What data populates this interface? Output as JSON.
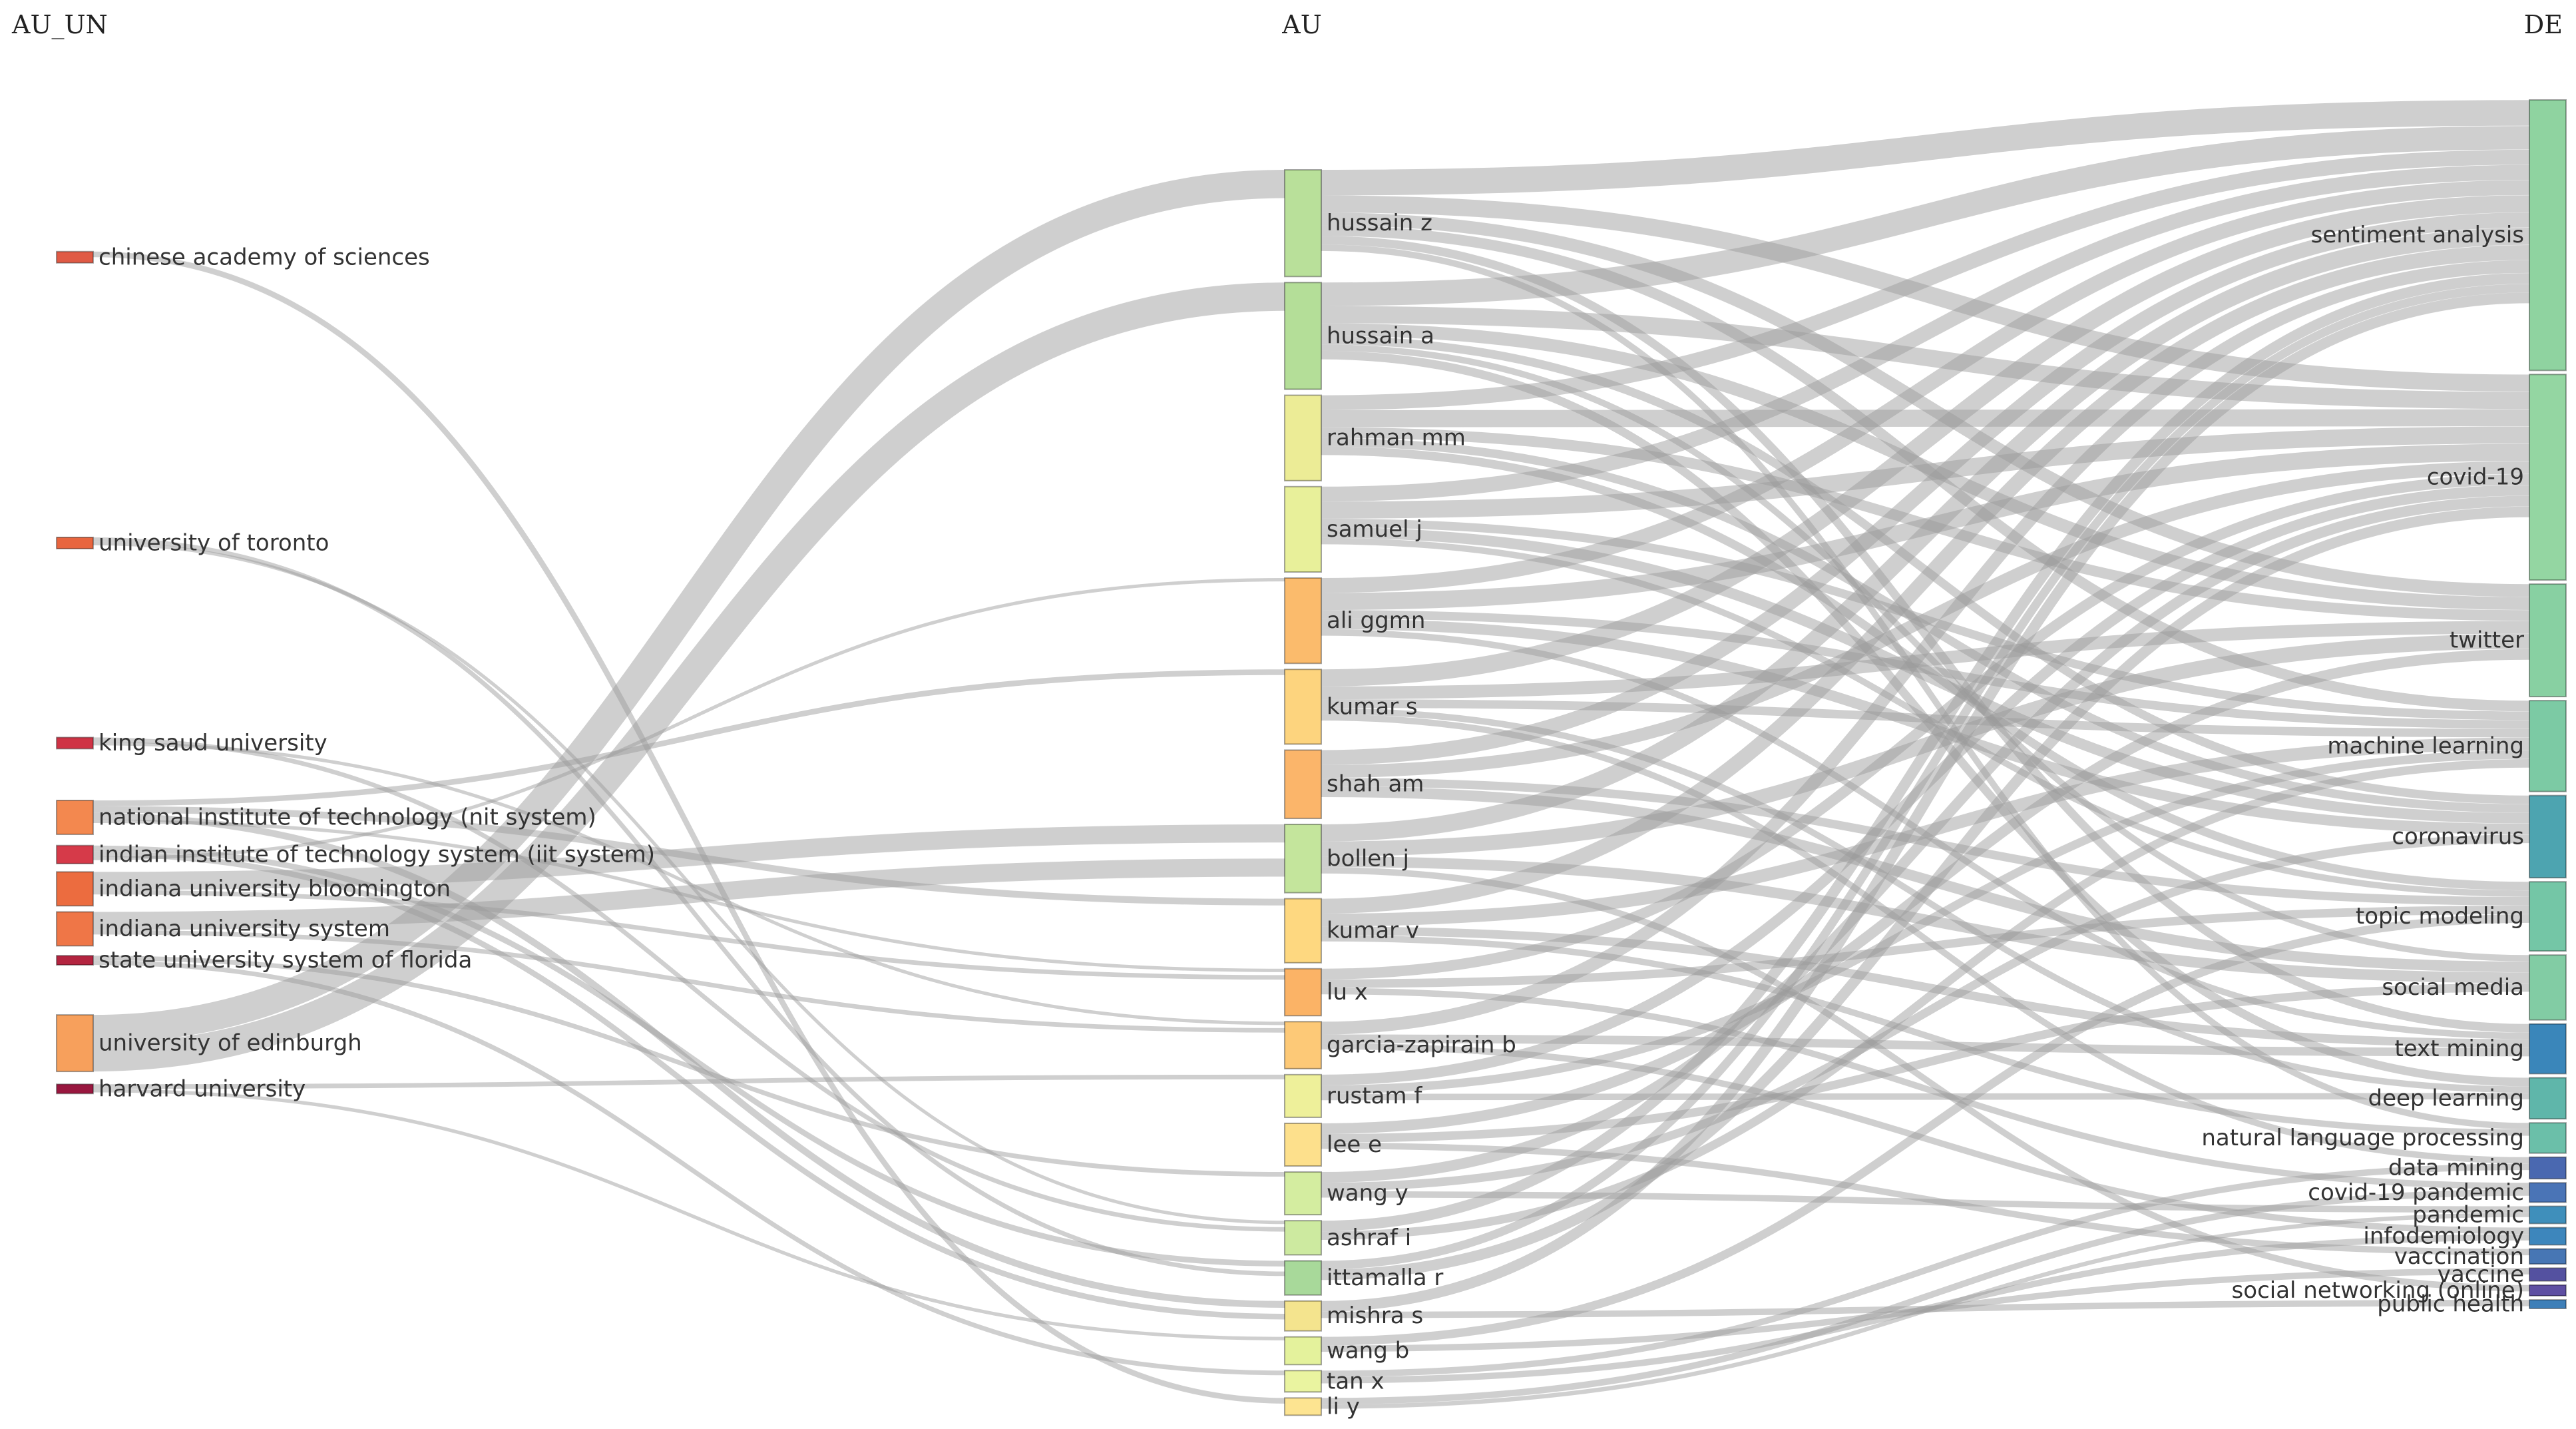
{
  "chart_data": {
    "type": "sankey",
    "columns": [
      {
        "key": "AU_UN",
        "title": "AU_UN"
      },
      {
        "key": "AU",
        "title": "AU"
      },
      {
        "key": "DE",
        "title": "DE"
      }
    ],
    "nodes": {
      "AU_UN": [
        {
          "label": "chinese academy of sciences",
          "value": 1,
          "color": "#e05a45"
        },
        {
          "label": "university of toronto",
          "value": 1,
          "color": "#e8653e"
        },
        {
          "label": "king saud university",
          "value": 1,
          "color": "#cf3345"
        },
        {
          "label": "national institute of technology (nit system)",
          "value": 3,
          "color": "#f3884f"
        },
        {
          "label": "indian institute of technology system (iit system)",
          "value": 1.6,
          "color": "#d63a49"
        },
        {
          "label": "indiana university bloomington",
          "value": 3,
          "color": "#ec6c3f"
        },
        {
          "label": "indiana university system",
          "value": 3,
          "color": "#ef7647"
        },
        {
          "label": "state university system of florida",
          "value": 0.6,
          "color": "#b3243f"
        },
        {
          "label": "university of edinburgh",
          "value": 5,
          "color": "#f7a05c"
        },
        {
          "label": "harvard university",
          "value": 0.8,
          "color": "#99173f"
        }
      ],
      "AU": [
        {
          "label": "hussain z",
          "value": 5,
          "color": "#b9e09a"
        },
        {
          "label": "hussain a",
          "value": 5,
          "color": "#b4de98"
        },
        {
          "label": "rahman mm",
          "value": 4,
          "color": "#ecec96"
        },
        {
          "label": "samuel j",
          "value": 4,
          "color": "#e8f09a"
        },
        {
          "label": "ali ggmn",
          "value": 4,
          "color": "#fbbb6c"
        },
        {
          "label": "kumar s",
          "value": 3.5,
          "color": "#fdd47e"
        },
        {
          "label": "shah am",
          "value": 3.2,
          "color": "#fbb56a"
        },
        {
          "label": "bollen j",
          "value": 3.2,
          "color": "#c4e59c"
        },
        {
          "label": "kumar v",
          "value": 3,
          "color": "#fed880"
        },
        {
          "label": "lu x",
          "value": 2.2,
          "color": "#fbb366"
        },
        {
          "label": "garcia-zapirain b",
          "value": 2.2,
          "color": "#fdc977"
        },
        {
          "label": "rustam f",
          "value": 2,
          "color": "#eef09a"
        },
        {
          "label": "lee e",
          "value": 2,
          "color": "#fde08c"
        },
        {
          "label": "wang y",
          "value": 2,
          "color": "#d4eda0"
        },
        {
          "label": "ashraf i",
          "value": 1.6,
          "color": "#cdeaa0"
        },
        {
          "label": "ittamalla r",
          "value": 1.6,
          "color": "#a8d99a"
        },
        {
          "label": "mishra s",
          "value": 1.4,
          "color": "#f4e48e"
        },
        {
          "label": "wang b",
          "value": 1.3,
          "color": "#e4f29c"
        },
        {
          "label": "tan x",
          "value": 1,
          "color": "#eaf4a0"
        },
        {
          "label": "li y",
          "value": 0.8,
          "color": "#fde491"
        }
      ],
      "DE": [
        {
          "label": "sentiment analysis",
          "value": 12.5,
          "color": "#8fd3a0"
        },
        {
          "label": "covid-19",
          "value": 9.5,
          "color": "#94d6a2"
        },
        {
          "label": "twitter",
          "value": 5.2,
          "color": "#88d0a2"
        },
        {
          "label": "machine learning",
          "value": 4.2,
          "color": "#7ccaa4"
        },
        {
          "label": "coronavirus",
          "value": 3.8,
          "color": "#4da4b0"
        },
        {
          "label": "topic modeling",
          "value": 3.2,
          "color": "#74c6a6"
        },
        {
          "label": "social media",
          "value": 3,
          "color": "#82cca4"
        },
        {
          "label": "text mining",
          "value": 2.3,
          "color": "#3a86ba"
        },
        {
          "label": "deep learning",
          "value": 1.9,
          "color": "#5fb6aa"
        },
        {
          "label": "natural language processing",
          "value": 1.4,
          "color": "#6bbfa9"
        },
        {
          "label": "data mining",
          "value": 1,
          "color": "#4a68b0"
        },
        {
          "label": "covid-19 pandemic",
          "value": 0.9,
          "color": "#4a74b6"
        },
        {
          "label": "pandemic",
          "value": 0.8,
          "color": "#3f8fbb"
        },
        {
          "label": "infodemiology",
          "value": 0.8,
          "color": "#3d86bc"
        },
        {
          "label": "vaccination",
          "value": 0.7,
          "color": "#4776b4"
        },
        {
          "label": "vaccine",
          "value": 0.6,
          "color": "#5451a0"
        },
        {
          "label": "social networking (online)",
          "value": 0.5,
          "color": "#5e4fa2"
        },
        {
          "label": "public health",
          "value": 0.4,
          "color": "#3e7fb8"
        }
      ]
    },
    "links_au_un_to_au": [
      [
        "university of edinburgh",
        "hussain z",
        2.5
      ],
      [
        "university of edinburgh",
        "hussain a",
        2.5
      ],
      [
        "indiana university bloomington",
        "bollen j",
        1.6
      ],
      [
        "indiana university system",
        "bollen j",
        1.6
      ],
      [
        "national institute of technology (nit system)",
        "kumar s",
        0.5
      ],
      [
        "national institute of technology (nit system)",
        "kumar v",
        0.6
      ],
      [
        "national institute of technology (nit system)",
        "mishra s",
        0.6
      ],
      [
        "national institute of technology (nit system)",
        "lu x",
        0.3
      ],
      [
        "indian institute of technology system (iit system)",
        "ittamalla r",
        0.5
      ],
      [
        "indian institute of technology system (iit system)",
        "mishra s",
        0.5
      ],
      [
        "indian institute of technology system (iit system)",
        "ali ggmn",
        0.3
      ],
      [
        "chinese academy of sciences",
        "li y",
        0.5
      ],
      [
        "university of toronto",
        "ittamalla r",
        0.4
      ],
      [
        "university of toronto",
        "ashraf i",
        0.3
      ],
      [
        "king saud university",
        "ashraf i",
        0.4
      ],
      [
        "king saud university",
        "garcia-zapirain b",
        0.3
      ],
      [
        "indiana university bloomington",
        "lu x",
        0.4
      ],
      [
        "indiana university system",
        "garcia-zapirain b",
        0.4
      ],
      [
        "state university system of florida",
        "wang y",
        0.3
      ],
      [
        "state university system of florida",
        "tan x",
        0.3
      ],
      [
        "harvard university",
        "rustam f",
        0.4
      ],
      [
        "harvard university",
        "wang b",
        0.3
      ]
    ],
    "links_au_to_de": [
      [
        "hussain z",
        "sentiment analysis",
        1.2
      ],
      [
        "hussain z",
        "covid-19",
        0.8
      ],
      [
        "hussain z",
        "twitter",
        0.6
      ],
      [
        "hussain z",
        "machine learning",
        0.5
      ],
      [
        "hussain z",
        "text mining",
        0.4
      ],
      [
        "hussain z",
        "natural language processing",
        0.3
      ],
      [
        "hussain a",
        "sentiment analysis",
        1.1
      ],
      [
        "hussain a",
        "covid-19",
        0.8
      ],
      [
        "hussain a",
        "twitter",
        0.6
      ],
      [
        "hussain a",
        "coronavirus",
        0.4
      ],
      [
        "hussain a",
        "deep learning",
        0.4
      ],
      [
        "hussain a",
        "social media",
        0.3
      ],
      [
        "rahman mm",
        "covid-19",
        0.8
      ],
      [
        "rahman mm",
        "sentiment analysis",
        0.7
      ],
      [
        "rahman mm",
        "twitter",
        0.5
      ],
      [
        "rahman mm",
        "coronavirus",
        0.4
      ],
      [
        "rahman mm",
        "topic modeling",
        0.4
      ],
      [
        "samuel j",
        "covid-19",
        0.8
      ],
      [
        "samuel j",
        "sentiment analysis",
        0.7
      ],
      [
        "samuel j",
        "coronavirus",
        0.5
      ],
      [
        "samuel j",
        "machine learning",
        0.4
      ],
      [
        "samuel j",
        "topic modeling",
        0.3
      ],
      [
        "ali ggmn",
        "covid-19",
        0.8
      ],
      [
        "ali ggmn",
        "sentiment analysis",
        0.7
      ],
      [
        "ali ggmn",
        "coronavirus",
        0.5
      ],
      [
        "ali ggmn",
        "machine learning",
        0.4
      ],
      [
        "ali ggmn",
        "text mining",
        0.3
      ],
      [
        "kumar s",
        "sentiment analysis",
        0.8
      ],
      [
        "kumar s",
        "twitter",
        0.6
      ],
      [
        "kumar s",
        "machine learning",
        0.4
      ],
      [
        "kumar s",
        "deep learning",
        0.3
      ],
      [
        "kumar s",
        "data mining",
        0.3
      ],
      [
        "shah am",
        "sentiment analysis",
        0.7
      ],
      [
        "shah am",
        "covid-19",
        0.6
      ],
      [
        "shah am",
        "social media",
        0.5
      ],
      [
        "shah am",
        "topic modeling",
        0.4
      ],
      [
        "bollen j",
        "sentiment analysis",
        0.8
      ],
      [
        "bollen j",
        "twitter",
        0.7
      ],
      [
        "bollen j",
        "social media",
        0.5
      ],
      [
        "bollen j",
        "social networking (online)",
        0.3
      ],
      [
        "kumar v",
        "sentiment analysis",
        0.7
      ],
      [
        "kumar v",
        "machine learning",
        0.6
      ],
      [
        "kumar v",
        "text mining",
        0.4
      ],
      [
        "kumar v",
        "natural language processing",
        0.3
      ],
      [
        "lu x",
        "covid-19",
        0.5
      ],
      [
        "lu x",
        "topic modeling",
        0.4
      ],
      [
        "lu x",
        "covid-19 pandemic",
        0.3
      ],
      [
        "garcia-zapirain b",
        "sentiment analysis",
        0.6
      ],
      [
        "garcia-zapirain b",
        "text mining",
        0.4
      ],
      [
        "garcia-zapirain b",
        "infodemiology",
        0.3
      ],
      [
        "rustam f",
        "covid-19",
        0.5
      ],
      [
        "rustam f",
        "machine learning",
        0.4
      ],
      [
        "rustam f",
        "deep learning",
        0.3
      ],
      [
        "lee e",
        "twitter",
        0.5
      ],
      [
        "lee e",
        "social media",
        0.4
      ],
      [
        "lee e",
        "vaccination",
        0.3
      ],
      [
        "wang y",
        "covid-19",
        0.5
      ],
      [
        "wang y",
        "coronavirus",
        0.4
      ],
      [
        "wang y",
        "pandemic",
        0.3
      ],
      [
        "ashraf i",
        "sentiment analysis",
        0.5
      ],
      [
        "ashraf i",
        "machine learning",
        0.4
      ],
      [
        "ittamalla r",
        "covid-19",
        0.5
      ],
      [
        "ittamalla r",
        "sentiment analysis",
        0.4
      ],
      [
        "mishra s",
        "sentiment analysis",
        0.5
      ],
      [
        "mishra s",
        "public health",
        0.3
      ],
      [
        "wang b",
        "topic modeling",
        0.4
      ],
      [
        "wang b",
        "vaccine",
        0.3
      ],
      [
        "tan x",
        "data mining",
        0.3
      ],
      [
        "tan x",
        "infodemiology",
        0.3
      ],
      [
        "li y",
        "covid-19 pandemic",
        0.3
      ],
      [
        "li y",
        "pandemic",
        0.2
      ]
    ]
  }
}
